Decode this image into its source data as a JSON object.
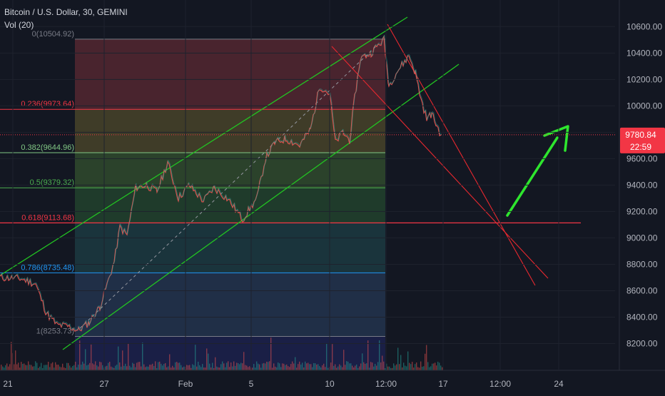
{
  "chart_data": {
    "type": "line",
    "title": "Bitcoin / U.S. Dollar, 30, GEMINI",
    "indicator": "Vol (20)",
    "ylim": [
      8100,
      10720
    ],
    "y_ticks": [
      8200,
      8400,
      8600,
      8800,
      9000,
      9200,
      9400,
      9600,
      9800,
      10000,
      10200,
      10400,
      10600
    ],
    "y_tick_labels": [
      "8200.00",
      "8400.00",
      "8600.00",
      "8800.00",
      "9000.00",
      "9200.00",
      "9400.00",
      "9600.00",
      "9800.00",
      "10000.00",
      "10200.00",
      "10400.00",
      "10600.00"
    ],
    "x_tick_labels": [
      "21",
      "27",
      "Feb",
      "5",
      "10",
      "12:00",
      "17",
      "12:00",
      "24"
    ],
    "current_price": {
      "value": 9780.84,
      "label": "9780.84",
      "countdown": "22:59"
    },
    "fib_levels": [
      {
        "label": "0(10504.92)",
        "value": 10504.92,
        "color": "#787b86"
      },
      {
        "label": "0.236(9973.64)",
        "value": 9973.64,
        "color": "#f23645"
      },
      {
        "label": "0.382(9644.96)",
        "value": 9644.96,
        "color": "#81c784"
      },
      {
        "label": "0.5(9379.32)",
        "value": 9379.32,
        "color": "#4caf50"
      },
      {
        "label": "0.618(9113.68)",
        "value": 9113.68,
        "color": "#f23645"
      },
      {
        "label": "0.786(8735.48)",
        "value": 8735.48,
        "color": "#2196f3"
      },
      {
        "label": "1(8253.73)",
        "value": 8253.73,
        "color": "#787b86"
      }
    ],
    "price_path": [
      [
        0,
        8700
      ],
      [
        30,
        8690
      ],
      [
        50,
        8650
      ],
      [
        65,
        8430
      ],
      [
        80,
        8340
      ],
      [
        95,
        8330
      ],
      [
        110,
        8300
      ],
      [
        125,
        8360
      ],
      [
        140,
        8480
      ],
      [
        152,
        8680
      ],
      [
        160,
        8820
      ],
      [
        168,
        9080
      ],
      [
        178,
        9020
      ],
      [
        190,
        9380
      ],
      [
        205,
        9400
      ],
      [
        220,
        9350
      ],
      [
        235,
        9570
      ],
      [
        250,
        9300
      ],
      [
        265,
        9400
      ],
      [
        285,
        9280
      ],
      [
        300,
        9380
      ],
      [
        320,
        9290
      ],
      [
        340,
        9140
      ],
      [
        350,
        9220
      ],
      [
        360,
        9300
      ],
      [
        372,
        9600
      ],
      [
        385,
        9720
      ],
      [
        400,
        9750
      ],
      [
        420,
        9700
      ],
      [
        435,
        9820
      ],
      [
        448,
        10150
      ],
      [
        462,
        10090
      ],
      [
        470,
        9720
      ],
      [
        480,
        9800
      ],
      [
        490,
        9740
      ],
      [
        497,
        10060
      ],
      [
        505,
        10360
      ],
      [
        520,
        10400
      ],
      [
        530,
        10460
      ],
      [
        538,
        10500
      ],
      [
        545,
        10150
      ],
      [
        555,
        10250
      ],
      [
        565,
        10320
      ],
      [
        573,
        10380
      ],
      [
        582,
        10250
      ],
      [
        590,
        10050
      ],
      [
        598,
        9900
      ],
      [
        605,
        9940
      ],
      [
        612,
        9850
      ],
      [
        618,
        9780
      ]
    ]
  }
}
